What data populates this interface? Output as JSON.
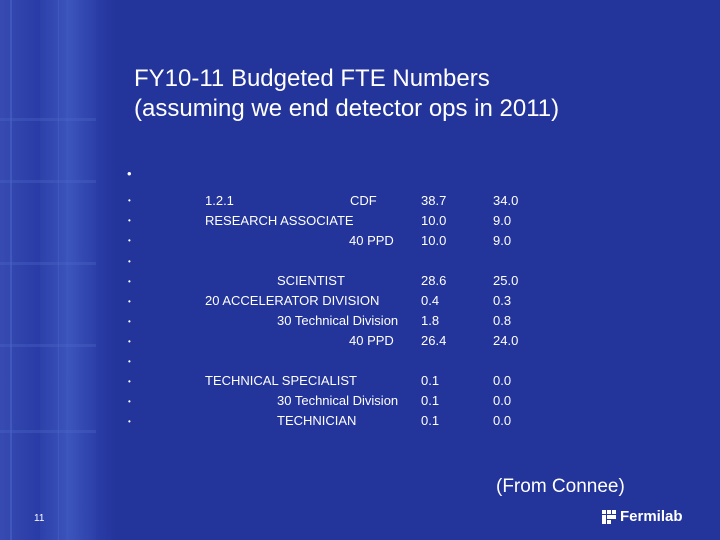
{
  "slide": {
    "title_line1": "FY10-11 Budgeted FTE Numbers",
    "title_line2": "(assuming we end detector ops  in 2011)",
    "credit": "(From Connee)",
    "page_number": "11",
    "logo_text": "Fermilab",
    "logo_icon": "fermilab-logo-icon"
  },
  "table": {
    "rows": [
      {
        "labels": [
          "1.2.1",
          "CDF"
        ],
        "col1": "38.7",
        "col2": "34.0"
      },
      {
        "labels": [
          "RESEARCH ASSOCIATE"
        ],
        "col1": "10.0",
        "col2": "9.0"
      },
      {
        "labels": [
          "40 PPD"
        ],
        "col1": "10.0",
        "col2": "9.0"
      },
      {
        "labels": [
          "SCIENTIST"
        ],
        "col1": "28.6",
        "col2": "25.0"
      },
      {
        "labels": [
          "20 ACCELERATOR DIVISION"
        ],
        "col1": "0.4",
        "col2": "0.3"
      },
      {
        "labels": [
          "30 Technical Division"
        ],
        "col1": "1.8",
        "col2": "0.8"
      },
      {
        "labels": [
          "40 PPD"
        ],
        "col1": "26.4",
        "col2": "24.0"
      },
      {
        "labels": [
          "TECHNICAL SPECIALIST"
        ],
        "col1": "0.1",
        "col2": "0.0"
      },
      {
        "labels": [
          "30 Technical Division"
        ],
        "col1": "0.1",
        "col2": "0.0"
      },
      {
        "labels": [
          "TECHNICIAN"
        ],
        "col1": "0.1",
        "col2": "0.0"
      }
    ]
  },
  "colors": {
    "background": "#23349a",
    "text": "#ffffff"
  }
}
